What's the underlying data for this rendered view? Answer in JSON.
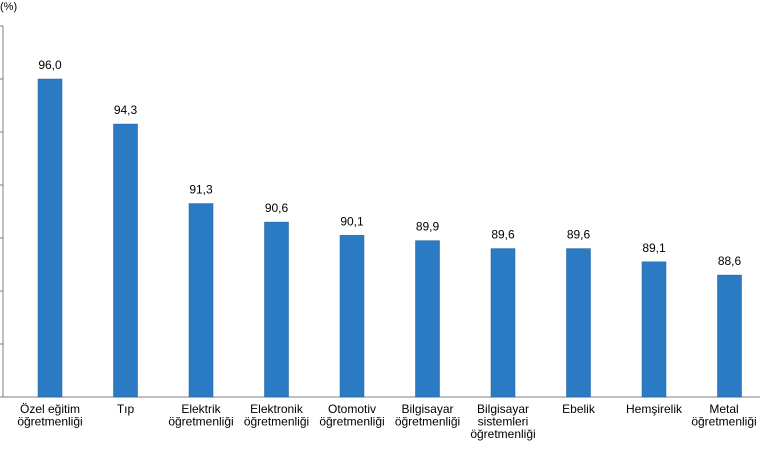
{
  "chart_data": {
    "type": "bar",
    "unit_label": "(%)",
    "categories": [
      [
        "Özel eğitim",
        "öğretmenliği"
      ],
      [
        "Tıp"
      ],
      [
        "Elektrik",
        "öğretmenliği"
      ],
      [
        "Elektronik",
        "öğretmenliği"
      ],
      [
        "Otomotiv",
        "öğretmenliği"
      ],
      [
        "Bilgisayar",
        "öğretmenliği"
      ],
      [
        "Bilgisayar",
        "sistemleri",
        "öğretmenliği"
      ],
      [
        "Ebelik"
      ],
      [
        "Hemşirelik"
      ],
      [
        "Metal",
        "öğretmenliği"
      ]
    ],
    "values": [
      96.0,
      94.3,
      91.3,
      90.6,
      90.1,
      89.9,
      89.6,
      89.6,
      89.1,
      88.6
    ],
    "value_labels": [
      "96,0",
      "94,3",
      "91,3",
      "90,6",
      "90,1",
      "89,9",
      "89,6",
      "89,6",
      "89,1",
      "88,6"
    ],
    "ylim": [
      84,
      98
    ],
    "ytick_step": 2,
    "bar_color": "#2a7bc3",
    "grid": false,
    "legend": "none"
  }
}
